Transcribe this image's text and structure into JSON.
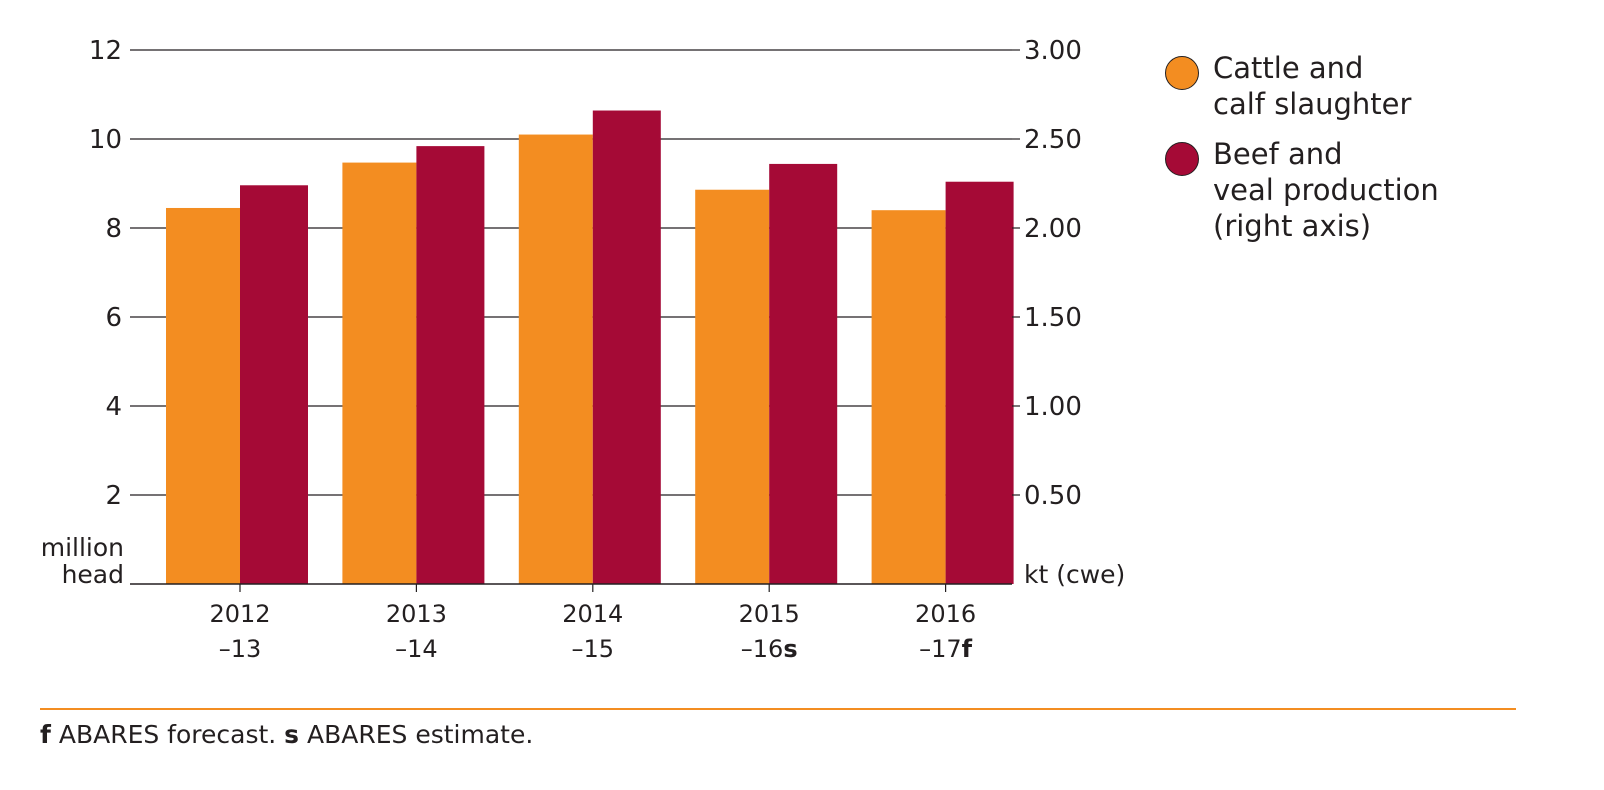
{
  "colors": {
    "cattle": "#f38d21",
    "beef": "#a50a36",
    "axis": "#231f20",
    "rule": "#f38d21"
  },
  "chart_data": {
    "type": "bar",
    "categories": [
      {
        "line1": "2012",
        "line2": "–13",
        "mark": ""
      },
      {
        "line1": "2013",
        "line2": "–14",
        "mark": ""
      },
      {
        "line1": "2014",
        "line2": "–15",
        "mark": ""
      },
      {
        "line1": "2015",
        "line2": "–16",
        "mark": "s"
      },
      {
        "line1": "2016",
        "line2": "–17",
        "mark": "f"
      }
    ],
    "series": [
      {
        "name": "Cattle and\ncalf slaughter",
        "axis": "left",
        "values": [
          8.45,
          9.47,
          10.1,
          8.86,
          8.4
        ]
      },
      {
        "name": "Beef and\nveal production\n(right axis)",
        "axis": "right",
        "values": [
          2.24,
          2.46,
          2.66,
          2.36,
          2.26
        ]
      }
    ],
    "left_axis": {
      "label": [
        "million",
        "head"
      ],
      "ylim": [
        0,
        12
      ],
      "ticks": [
        "2",
        "4",
        "6",
        "8",
        "10",
        "12"
      ]
    },
    "right_axis": {
      "label": "kt (cwe)",
      "ylim": [
        0,
        3
      ],
      "ticks": [
        "0.50",
        "1.00",
        "1.50",
        "2.00",
        "2.50",
        "3.00"
      ]
    },
    "grid": true,
    "legend_position": "right"
  },
  "footnote": {
    "f_mark": "f",
    "f_text": " ABARES forecast. ",
    "s_mark": "s",
    "s_text": " ABARES estimate."
  }
}
